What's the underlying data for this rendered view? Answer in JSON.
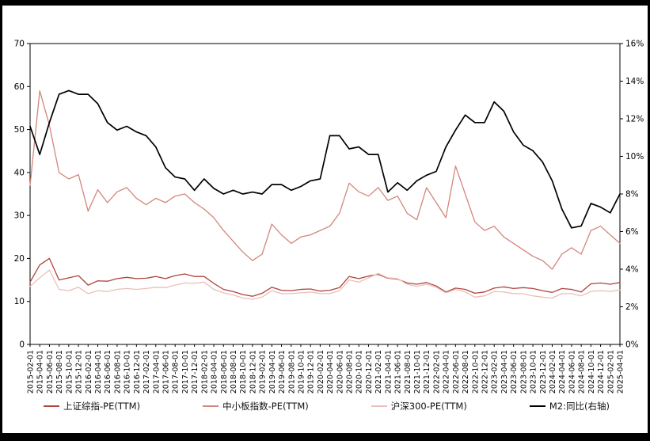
{
  "chart_data": {
    "type": "line",
    "title": "",
    "grid": false,
    "legend_position": "bottom",
    "background": "#ffffff",
    "frame_color": "#000000",
    "left_axis": {
      "min": 0,
      "max": 70,
      "tick_values": [
        0,
        10,
        20,
        30,
        40,
        50,
        60,
        70
      ],
      "tick_labels": [
        "0",
        "10",
        "20",
        "30",
        "40",
        "50",
        "60",
        "70"
      ]
    },
    "right_axis": {
      "min": 0,
      "max": 16,
      "tick_values": [
        0,
        2,
        4,
        6,
        8,
        10,
        12,
        14,
        16
      ],
      "tick_labels": [
        "0%",
        "2%",
        "4%",
        "6%",
        "8%",
        "10%",
        "12%",
        "14%",
        "16%"
      ]
    },
    "x_labels": [
      "2015-02-01",
      "2015-04-01",
      "2015-06-01",
      "2015-08-01",
      "2015-10-01",
      "2015-12-01",
      "2016-02-01",
      "2016-04-01",
      "2016-06-01",
      "2016-08-01",
      "2016-10-01",
      "2016-12-01",
      "2017-02-01",
      "2017-04-01",
      "2017-06-01",
      "2017-08-01",
      "2017-10-01",
      "2017-12-01",
      "2018-02-01",
      "2018-04-01",
      "2018-06-01",
      "2018-08-01",
      "2018-10-01",
      "2018-12-01",
      "2019-02-01",
      "2019-04-01",
      "2019-06-01",
      "2019-08-01",
      "2019-10-01",
      "2019-12-01",
      "2020-02-01",
      "2020-04-01",
      "2020-06-01",
      "2020-08-01",
      "2020-10-01",
      "2020-12-01",
      "2021-02-01",
      "2021-04-01",
      "2021-06-01",
      "2021-08-01",
      "2021-10-01",
      "2021-12-01",
      "2022-02-01",
      "2022-04-01",
      "2022-06-01",
      "2022-08-01",
      "2022-10-01",
      "2022-12-01",
      "2023-02-01",
      "2023-04-01",
      "2023-06-01",
      "2023-08-01",
      "2023-10-01",
      "2023-12-01",
      "2024-02-01",
      "2024-04-01",
      "2024-06-01",
      "2024-08-01",
      "2024-10-01",
      "2024-12-01",
      "2025-02-01",
      "2025-04-01"
    ],
    "series": [
      {
        "name": "上证综指-PE(TTM)",
        "axis": "left",
        "color": "#b0433c",
        "values": [
          14.5,
          18.5,
          20.0,
          15.0,
          15.5,
          16.0,
          13.8,
          14.8,
          14.7,
          15.3,
          15.6,
          15.3,
          15.4,
          15.8,
          15.3,
          16.0,
          16.4,
          15.8,
          15.8,
          14.2,
          12.8,
          12.3,
          11.6,
          11.2,
          11.9,
          13.3,
          12.6,
          12.5,
          12.8,
          12.9,
          12.4,
          12.6,
          13.2,
          15.8,
          15.3,
          15.9,
          16.3,
          15.4,
          15.2,
          14.3,
          14.0,
          14.4,
          13.6,
          12.2,
          13.1,
          12.8,
          11.9,
          12.2,
          13.1,
          13.4,
          13.0,
          13.2,
          13.0,
          12.5,
          12.1,
          13.0,
          12.8,
          12.2,
          14.1,
          14.3,
          14.0,
          14.4
        ]
      },
      {
        "name": "中小板指数-PE(TTM)",
        "axis": "left",
        "color": "#d3867c",
        "values": [
          37.0,
          59.0,
          51.0,
          40.0,
          38.5,
          39.5,
          31.0,
          36.0,
          33.0,
          35.5,
          36.5,
          34.0,
          32.5,
          34.0,
          33.0,
          34.5,
          35.0,
          33.0,
          31.5,
          29.5,
          26.5,
          24.0,
          21.5,
          19.5,
          21.0,
          28.0,
          25.5,
          23.5,
          25.0,
          25.5,
          26.5,
          27.5,
          30.5,
          37.5,
          35.5,
          34.5,
          36.5,
          33.5,
          34.5,
          30.5,
          29.0,
          36.5,
          33.0,
          29.5,
          41.5,
          35.0,
          28.5,
          26.5,
          27.5,
          25.0,
          23.5,
          22.0,
          20.5,
          19.5,
          17.5,
          21.0,
          22.5,
          21.0,
          26.5,
          27.5,
          25.5,
          23.5
        ]
      },
      {
        "name": "沪深300-PE(TTM)",
        "axis": "left",
        "color": "#eabfb8",
        "values": [
          13.5,
          15.5,
          17.3,
          12.8,
          12.5,
          13.3,
          11.8,
          12.5,
          12.3,
          12.8,
          13.0,
          12.8,
          13.0,
          13.3,
          13.2,
          13.8,
          14.3,
          14.2,
          14.5,
          12.8,
          12.0,
          11.5,
          10.8,
          10.5,
          11.0,
          12.5,
          11.8,
          11.8,
          12.0,
          12.2,
          11.8,
          11.8,
          12.5,
          15.0,
          14.5,
          15.5,
          16.5,
          15.5,
          15.3,
          14.0,
          13.5,
          14.0,
          13.3,
          12.0,
          12.8,
          12.2,
          11.0,
          11.3,
          12.3,
          12.2,
          11.8,
          11.8,
          11.3,
          11.0,
          10.8,
          11.8,
          11.8,
          11.3,
          12.3,
          12.5,
          12.3,
          12.7
        ]
      },
      {
        "name": "M2:同比(右轴)",
        "axis": "right",
        "color": "#000000",
        "values": [
          11.6,
          10.1,
          11.8,
          13.3,
          13.5,
          13.3,
          13.3,
          12.8,
          11.8,
          11.4,
          11.6,
          11.3,
          11.1,
          10.5,
          9.4,
          8.9,
          8.8,
          8.2,
          8.8,
          8.3,
          8.0,
          8.2,
          8.0,
          8.1,
          8.0,
          8.5,
          8.5,
          8.2,
          8.4,
          8.7,
          8.8,
          11.1,
          11.1,
          10.4,
          10.5,
          10.1,
          10.1,
          8.1,
          8.6,
          8.2,
          8.7,
          9.0,
          9.2,
          10.5,
          11.4,
          12.2,
          11.8,
          11.8,
          12.9,
          12.4,
          11.3,
          10.6,
          10.3,
          9.7,
          8.7,
          7.2,
          6.2,
          6.3,
          7.5,
          7.3,
          7.0,
          8.0
        ]
      }
    ]
  }
}
